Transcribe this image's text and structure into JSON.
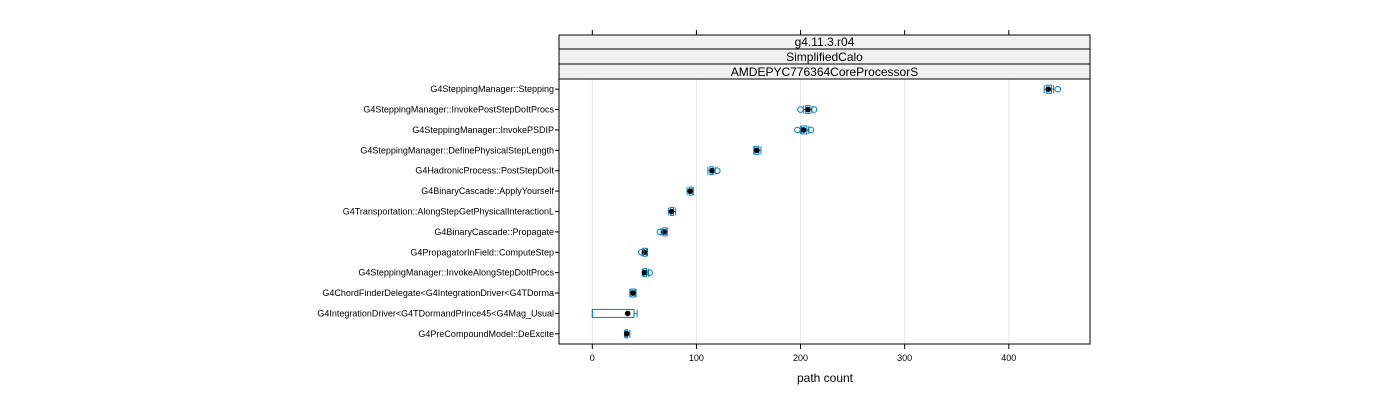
{
  "chart_data": {
    "type": "boxplot",
    "strips": [
      "g4.11.3.r04",
      "SimplifiedCalo",
      "AMDEPYC776364CoreProcessorS"
    ],
    "xlabel": "path count",
    "xlim": [
      -32,
      478
    ],
    "xticks": [
      0,
      100,
      200,
      300,
      400
    ],
    "grid": true,
    "colors": {
      "box": "#0080c0",
      "median": "#000000",
      "strip_bg": "#f0f0f0",
      "grid": "#e6e6e6"
    },
    "categories": [
      "G4SteppingManager::Stepping",
      "G4SteppingManager::InvokePostStepDoItProcs",
      "G4SteppingManager::InvokePSDIP",
      "G4SteppingManager::DefinePhysicalStepLength",
      "G4HadronicProcess::PostStepDoIt",
      "G4BinaryCascade::ApplyYourself",
      "G4Transportation::AlongStepGetPhysicalInteractionL",
      "G4BinaryCascade::Propagate",
      "G4PropagatorInField::ComputeStep",
      "G4SteppingManager::InvokeAlongStepDoItProcs",
      "G4ChordFinderDelegate<G4IntegrationDriver<G4TDorma",
      "G4IntegrationDriver<G4TDormandPrince45<G4Mag_Usual",
      "G4PreCompoundModel::DeExcite"
    ],
    "series": [
      {
        "min": 434,
        "q1": 436,
        "median": 438,
        "q3": 441,
        "max": 443,
        "outliers": [
          447
        ]
      },
      {
        "min": 203,
        "q1": 205,
        "median": 207,
        "q3": 209,
        "max": 211,
        "outliers": [
          200,
          213
        ]
      },
      {
        "min": 200,
        "q1": 201,
        "median": 203,
        "q3": 206,
        "max": 208,
        "outliers": [
          197,
          210
        ]
      },
      {
        "min": 155,
        "q1": 156,
        "median": 158,
        "q3": 160,
        "max": 162,
        "outliers": []
      },
      {
        "min": 111,
        "q1": 113,
        "median": 115,
        "q3": 116,
        "max": 118,
        "outliers": [
          120
        ]
      },
      {
        "min": 91,
        "q1": 93,
        "median": 94,
        "q3": 96,
        "max": 97,
        "outliers": []
      },
      {
        "min": 73,
        "q1": 75,
        "median": 76,
        "q3": 78,
        "max": 80,
        "outliers": []
      },
      {
        "min": 66,
        "q1": 68,
        "median": 69,
        "q3": 71,
        "max": 72,
        "outliers": [
          65
        ]
      },
      {
        "min": 48,
        "q1": 49,
        "median": 50,
        "q3": 52,
        "max": 53,
        "outliers": [
          47
        ]
      },
      {
        "min": 48,
        "q1": 49,
        "median": 50,
        "q3": 52,
        "max": 54,
        "outliers": [
          55
        ]
      },
      {
        "min": 36,
        "q1": 37,
        "median": 39,
        "q3": 41,
        "max": 42,
        "outliers": []
      },
      {
        "min": 0,
        "q1": 0,
        "median": 34,
        "q3": 40,
        "max": 43,
        "outliers": []
      },
      {
        "min": 31,
        "q1": 32,
        "median": 33,
        "q3": 34,
        "max": 36,
        "outliers": []
      }
    ]
  }
}
